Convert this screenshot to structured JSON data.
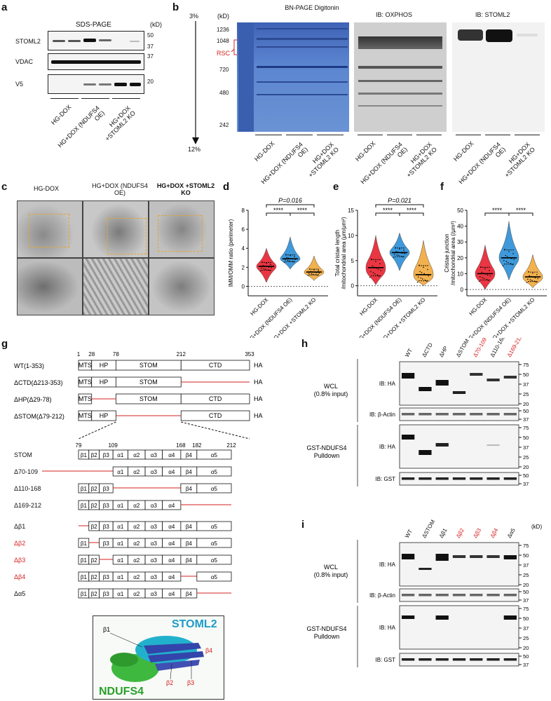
{
  "panels": {
    "a": "a",
    "b": "b",
    "c": "c",
    "d": "d",
    "e": "e",
    "f": "f",
    "g": "g",
    "h": "h",
    "i": "i"
  },
  "a": {
    "title": "SDS-PAGE",
    "unit": "(kD)",
    "rows": [
      "STOML2",
      "VDAC",
      "V5"
    ],
    "mw": [
      "50",
      "37",
      "37",
      "20"
    ],
    "groups": [
      "HG-DOX",
      "HG+DOX (NDUFS4 OE)",
      "HG+DOX +STOML2 KO"
    ]
  },
  "b": {
    "gradient_top": "3%",
    "gradient_bottom": "12%",
    "unit": "(kD)",
    "mw": [
      "1236",
      "1048",
      "720",
      "480",
      "242"
    ],
    "rsc": "RSC",
    "titles": [
      "BN-PAGE Digitonin",
      "IB: OXPHOS",
      "IB: STOML2"
    ],
    "groups": [
      "HG-DOX",
      "HG+DOX (NDUFS4 OE)",
      "HG+DOX +STOML2 KO"
    ]
  },
  "c": {
    "cols": [
      "HG-DOX",
      "HG+DOX (NDUFS4 OE)",
      "HG+DOX +STOML2 KO"
    ]
  },
  "violin": {
    "groups": [
      "HG-DOX",
      "HG+DOX (NDUFS4 OE)",
      "HG+DOX +STOML2 KO"
    ],
    "colors": [
      "#e8212e",
      "#2b8fd6",
      "#f1a93b"
    ],
    "d": {
      "ylabel": "IMM/OMM ratio (perimeter)",
      "pvalue": "P=0.016",
      "sig": [
        "****",
        "****"
      ],
      "ticks": [
        "0",
        "2",
        "4",
        "6",
        "8"
      ],
      "ylim": [
        -1,
        8
      ],
      "data": [
        {
          "median": 2.1,
          "q1": 1.7,
          "q3": 2.5,
          "min": 0.4,
          "max": 4.0
        },
        {
          "median": 2.9,
          "q1": 2.6,
          "q3": 3.3,
          "min": 1.8,
          "max": 5.2
        },
        {
          "median": 1.5,
          "q1": 1.2,
          "q3": 1.8,
          "min": 0.6,
          "max": 3.2
        }
      ]
    },
    "e": {
      "ylabel": "Total cristae length /mitochondrial area (μm/μm²)",
      "pvalue": "P=0.021",
      "sig": [
        "****",
        "****"
      ],
      "ticks": [
        "0",
        "5",
        "10",
        "15"
      ],
      "ylim": [
        -2,
        15
      ],
      "data": [
        {
          "median": 3.6,
          "q1": 2.0,
          "q3": 5.2,
          "min": 0.2,
          "max": 10.0
        },
        {
          "median": 6.6,
          "q1": 5.8,
          "q3": 7.5,
          "min": 3.0,
          "max": 10.5
        },
        {
          "median": 2.2,
          "q1": 1.0,
          "q3": 4.0,
          "min": 0.0,
          "max": 9.0
        }
      ]
    },
    "f": {
      "ylabel": "Cristae junction /mitochondrial area (/μm²)",
      "pvalue": "",
      "sig": [
        "****",
        "****"
      ],
      "ticks": [
        "0",
        "10",
        "20",
        "30",
        "40",
        "50"
      ],
      "ylim": [
        -4,
        50
      ],
      "data": [
        {
          "median": 10,
          "q1": 6,
          "q3": 14,
          "min": 0,
          "max": 28
        },
        {
          "median": 20,
          "q1": 16,
          "q3": 25,
          "min": 6,
          "max": 43
        },
        {
          "median": 8,
          "q1": 5,
          "q3": 11,
          "min": 1,
          "max": 22
        }
      ]
    }
  },
  "g": {
    "positions": [
      "1",
      "28",
      "78",
      "212",
      "353"
    ],
    "constructs": [
      "WT(1-353)",
      "ΔCTD(Δ213-353)",
      "ΔHP(Δ29-78)",
      "ΔSTOM(Δ79-212)"
    ],
    "domains": [
      "MTS",
      "HP",
      "STOM",
      "CTD"
    ],
    "tag": "HA",
    "stom_label": "STOM",
    "stom_positions": [
      "79",
      "109",
      "168",
      "182",
      "212"
    ],
    "ss": [
      "β1",
      "β2",
      "β3",
      "α1",
      "α2",
      "α3",
      "α4",
      "β4",
      "α5"
    ],
    "deletions": [
      "Δ70-109",
      "Δ110-168",
      "Δ169-212"
    ],
    "pointdel": [
      "Δβ1",
      "Δβ2",
      "Δβ3",
      "Δβ4",
      "Δα5"
    ],
    "structure": {
      "a": "STOML2",
      "b": "NDUFS4",
      "labels": [
        "β1",
        "β4",
        "β2",
        "β3"
      ]
    }
  },
  "h": {
    "lanes": [
      "WT",
      "ΔCTD",
      "ΔHP",
      "ΔSTOM",
      "Δ70-109",
      "Δ110-168",
      "Δ169-212"
    ],
    "wcl": "WCL (0.8% input)",
    "pulldown": "GST-NDUFS4 Pulldown",
    "ib": [
      "IB: HA",
      "IB: β-Actin",
      "IB: HA",
      "IB: GST"
    ],
    "mw_top": [
      "75",
      "50",
      "37",
      "25",
      "20"
    ],
    "mw_actin": [
      "50",
      "37"
    ],
    "mw_pd": [
      "75",
      "50",
      "37",
      "25",
      "20"
    ],
    "mw_gst": [
      "50",
      "37"
    ]
  },
  "i": {
    "unit": "(kD)",
    "lanes": [
      "WT",
      "ΔSTOM",
      "Δβ1",
      "Δβ2",
      "Δβ3",
      "Δβ4",
      "Δα5"
    ],
    "wcl": "WCL (0.8% input)",
    "pulldown": "GST-NDUFS4 Pulldown",
    "ib": [
      "IB: HA",
      "IB: β-Actin",
      "IB: HA",
      "IB: GST"
    ],
    "mw_top": [
      "75",
      "50",
      "37",
      "25",
      "20"
    ],
    "mw_actin": [
      "50",
      "37"
    ],
    "mw_pd": [
      "75",
      "50",
      "37",
      "25",
      "20"
    ],
    "mw_gst": [
      "50",
      "37"
    ]
  }
}
